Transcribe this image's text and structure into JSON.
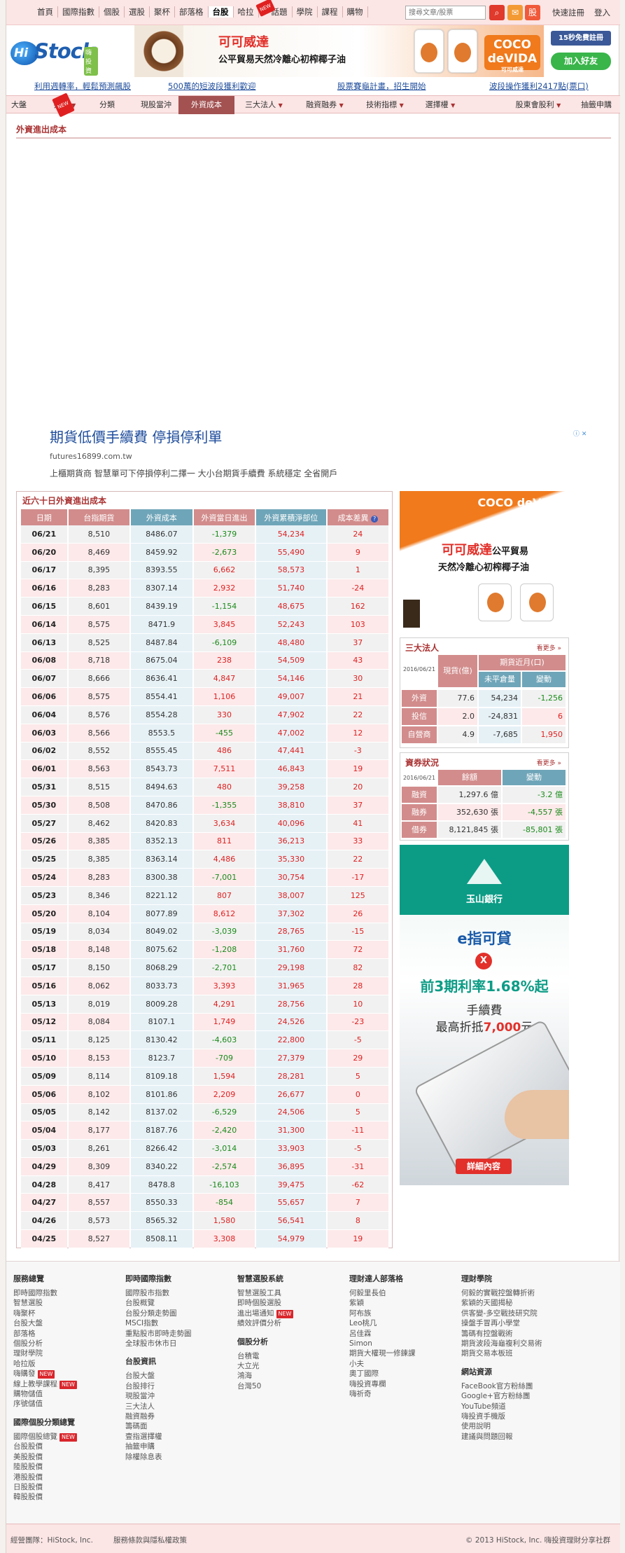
{
  "topnav": {
    "items": [
      "首頁",
      "國際指數",
      "個股",
      "選股",
      "聚杯",
      "部落格",
      "台股",
      "哈拉",
      "話題",
      "學院",
      "課程",
      "購物"
    ],
    "new_label": "NEW",
    "search_placeholder": "搜尋文章/股票",
    "stock_icon_label": "股",
    "register": "快速註冊",
    "login": "登入"
  },
  "logo": {
    "hi": "Hi",
    "stock": "Stock",
    "sub": "嗨投資"
  },
  "top_ad": {
    "title": "可可威達",
    "subtitle": "公平貿易天然冷離心初榨椰子油",
    "brand": "COCO deVIDA",
    "brand_sub": "可可威達"
  },
  "social": {
    "fb": "15秒免費註冊",
    "line": "加入好友"
  },
  "promos": [
    "利用週轉率，輕鬆預測飆股",
    "500萬的短波段獲利歡迎",
    "股票賽龜計畫，招生開始",
    "波段操作獲利2417點(票口)"
  ],
  "subnav": {
    "items": [
      "大盤",
      "排行",
      "分類",
      "現股當沖",
      "外資成本",
      "三大法人",
      "融資融券",
      "技術指標",
      "選擇權",
      "股東會股利",
      "抽籤申購"
    ],
    "active": "外資成本"
  },
  "page_title": "外資進出成本",
  "google_ad": {
    "headline": "期貨低價手續費 停損停利單",
    "url": "futures16899.com.tw",
    "desc": "上櫃期貨商 智慧單可下停損停利二擇一 大小台期貨手續費 系統穩定 全省開戶"
  },
  "table": {
    "caption": "近六十日外資進出成本",
    "headers": [
      "日期",
      "台指期貨",
      "外資成本",
      "外資當日進出",
      "外資累積淨部位",
      "成本差異"
    ],
    "help_icon": "?",
    "rows": [
      [
        "06/21",
        "8,510",
        "8486.07",
        "-1,379",
        "54,234",
        "24"
      ],
      [
        "06/20",
        "8,469",
        "8459.92",
        "-2,673",
        "55,490",
        "9"
      ],
      [
        "06/17",
        "8,395",
        "8393.55",
        "6,662",
        "58,573",
        "1"
      ],
      [
        "06/16",
        "8,283",
        "8307.14",
        "2,932",
        "51,740",
        "-24"
      ],
      [
        "06/15",
        "8,601",
        "8439.19",
        "-1,154",
        "48,675",
        "162"
      ],
      [
        "06/14",
        "8,575",
        "8471.9",
        "3,845",
        "52,243",
        "103"
      ],
      [
        "06/13",
        "8,525",
        "8487.84",
        "-6,109",
        "48,480",
        "37"
      ],
      [
        "06/08",
        "8,718",
        "8675.04",
        "238",
        "54,509",
        "43"
      ],
      [
        "06/07",
        "8,666",
        "8636.41",
        "4,847",
        "54,146",
        "30"
      ],
      [
        "06/06",
        "8,575",
        "8554.41",
        "1,106",
        "49,007",
        "21"
      ],
      [
        "06/04",
        "8,576",
        "8554.28",
        "330",
        "47,902",
        "22"
      ],
      [
        "06/03",
        "8,566",
        "8553.5",
        "-455",
        "47,002",
        "12"
      ],
      [
        "06/02",
        "8,552",
        "8555.45",
        "486",
        "47,441",
        "-3"
      ],
      [
        "06/01",
        "8,563",
        "8543.73",
        "7,511",
        "46,843",
        "19"
      ],
      [
        "05/31",
        "8,515",
        "8494.63",
        "480",
        "39,258",
        "20"
      ],
      [
        "05/30",
        "8,508",
        "8470.86",
        "-1,355",
        "38,810",
        "37"
      ],
      [
        "05/27",
        "8,462",
        "8420.83",
        "3,634",
        "40,096",
        "41"
      ],
      [
        "05/26",
        "8,385",
        "8352.13",
        "811",
        "36,213",
        "33"
      ],
      [
        "05/25",
        "8,385",
        "8363.14",
        "4,486",
        "35,330",
        "22"
      ],
      [
        "05/24",
        "8,283",
        "8300.38",
        "-7,001",
        "30,754",
        "-17"
      ],
      [
        "05/23",
        "8,346",
        "8221.12",
        "807",
        "38,007",
        "125"
      ],
      [
        "05/20",
        "8,104",
        "8077.89",
        "8,612",
        "37,302",
        "26"
      ],
      [
        "05/19",
        "8,034",
        "8049.02",
        "-3,039",
        "28,765",
        "-15"
      ],
      [
        "05/18",
        "8,148",
        "8075.62",
        "-1,208",
        "31,760",
        "72"
      ],
      [
        "05/17",
        "8,150",
        "8068.29",
        "-2,701",
        "29,198",
        "82"
      ],
      [
        "05/16",
        "8,062",
        "8033.73",
        "3,393",
        "31,965",
        "28"
      ],
      [
        "05/13",
        "8,019",
        "8009.28",
        "4,291",
        "28,756",
        "10"
      ],
      [
        "05/12",
        "8,084",
        "8107.1",
        "1,749",
        "24,526",
        "-23"
      ],
      [
        "05/11",
        "8,125",
        "8130.42",
        "-4,603",
        "22,800",
        "-5"
      ],
      [
        "05/10",
        "8,153",
        "8123.7",
        "-709",
        "27,379",
        "29"
      ],
      [
        "05/09",
        "8,114",
        "8109.18",
        "1,594",
        "28,281",
        "5"
      ],
      [
        "05/06",
        "8,102",
        "8101.86",
        "2,209",
        "26,677",
        "0"
      ],
      [
        "05/05",
        "8,142",
        "8137.02",
        "-6,529",
        "24,506",
        "5"
      ],
      [
        "05/04",
        "8,177",
        "8187.76",
        "-2,420",
        "31,300",
        "-11"
      ],
      [
        "05/03",
        "8,261",
        "8266.42",
        "-3,014",
        "33,903",
        "-5"
      ],
      [
        "04/29",
        "8,309",
        "8340.22",
        "-2,574",
        "36,895",
        "-31"
      ],
      [
        "04/28",
        "8,417",
        "8478.8",
        "-16,103",
        "39,475",
        "-62"
      ],
      [
        "04/27",
        "8,557",
        "8550.33",
        "-854",
        "55,657",
        "7"
      ],
      [
        "04/26",
        "8,573",
        "8565.32",
        "1,580",
        "56,541",
        "8"
      ],
      [
        "04/25",
        "8,527",
        "8508.11",
        "3,308",
        "54,979",
        "19"
      ]
    ]
  },
  "side_ad": {
    "brand": "COCO deVIDA",
    "brand_sub": "可可威達",
    "title": "可可威達",
    "t1b": "公平貿易",
    "subtitle": "天然冷離心初榨椰子油"
  },
  "institutional": {
    "title": "三大法人",
    "more": "看更多",
    "date": "2016/06/21",
    "col_spot": "現貨(億)",
    "col_fut": "期貨近月(口)",
    "col_oi": "未平倉量",
    "col_chg": "變動",
    "rows": [
      {
        "name": "外資",
        "spot": "77.6",
        "oi": "54,234",
        "chg": "-1,256"
      },
      {
        "name": "投信",
        "spot": "2.0",
        "oi": "-24,831",
        "chg": "6"
      },
      {
        "name": "自營商",
        "spot": "4.9",
        "oi": "-7,685",
        "chg": "1,950"
      }
    ]
  },
  "margin": {
    "title": "資券狀況",
    "more": "看更多",
    "date": "2016/06/21",
    "col_bal": "餘額",
    "col_chg": "變動",
    "rows": [
      {
        "name": "融資",
        "bal": "1,297.6 億",
        "chg": "-3.2 億"
      },
      {
        "name": "融券",
        "bal": "352,630 張",
        "chg": "-4,557 張"
      },
      {
        "name": "借券",
        "bal": "8,121,845 張",
        "chg": "-85,801 張"
      }
    ]
  },
  "bank_ad": {
    "bank": "玉山銀行",
    "l1": "e指可貸",
    "x": "X",
    "l2": "前3期利率1.68%起",
    "l3": "手續費",
    "l4a": "最高折抵",
    "l4b": "7,000",
    "l4c": "元",
    "cta": "詳細內容"
  },
  "footer": {
    "col1_h": "服務總覽",
    "col1": [
      "即時國際指數",
      "智慧選股",
      "嗨聚杯",
      "台股大盤",
      "部落格",
      "個股分析",
      "理財學院",
      "哈拉版"
    ],
    "col1_new": [
      "嗨購發",
      "線上教學課程"
    ],
    "col1b": [
      "購物儲值",
      "序號儲值"
    ],
    "col1_h2": "國際個股分類總覽",
    "col1_new2": "國際個股總覽",
    "col1c": [
      "台股股價",
      "美股股價",
      "陸股股價",
      "港股股價",
      "日股股價",
      "韓股股價"
    ],
    "col2_h": "即時國際指數",
    "col2": [
      "國際股市指數",
      "台股概覽",
      "台股分類走勢圖",
      "MSCI指數",
      "重點股市即時走勢圖",
      "全球股市休市日"
    ],
    "col2_h2": "台股資訊",
    "col2b": [
      "台股大盤",
      "台股排行",
      "現股當沖",
      "三大法人",
      "融資融券",
      "籌碼面",
      "壹指選擇權",
      "抽籤申購",
      "除權除息表"
    ],
    "col3_h": "智慧選股系統",
    "col3": [
      "智慧選股工具",
      "即時個股選股"
    ],
    "col3_new": "進出場通知",
    "col3b": [
      "績效評價分析"
    ],
    "col3_h2": "個股分析",
    "col3c": [
      "台積電",
      "大立光",
      "鴻海",
      "台灣50"
    ],
    "col4_h": "理財達人部落格",
    "col4": [
      "何毅里長伯",
      "紫穎",
      "阿布族",
      "Leo桃几",
      "呂佳霖",
      "Simon",
      "期貨大權現一修鍊課",
      "小夫",
      "奧丁國際",
      "嗨投資專欄",
      "嗨祈奇"
    ],
    "col5_h": "理財學院",
    "col5": [
      "何毅的實戰控盤轉折術",
      "紫穎的天國揭秘",
      "供客變-多空戰技研究院",
      "操盤手冒再小學堂",
      "籌碼有控盤戰術",
      "期貨波段海龜複利交易術",
      "期貨交易本板班"
    ],
    "col5_h2": "網站資源",
    "col5b": [
      "FaceBook官方粉絲團",
      "Google+官方粉絲團",
      "YouTube頻道",
      "嗨投資手機版",
      "使用說明",
      "建議與問題回報"
    ]
  },
  "bottom": {
    "company": "經營團隊：HiStock, Inc.",
    "terms": "服務條款與隱私權政策",
    "copyright": "© 2013 HiStock, Inc. 嗨投資理財分享社群"
  }
}
